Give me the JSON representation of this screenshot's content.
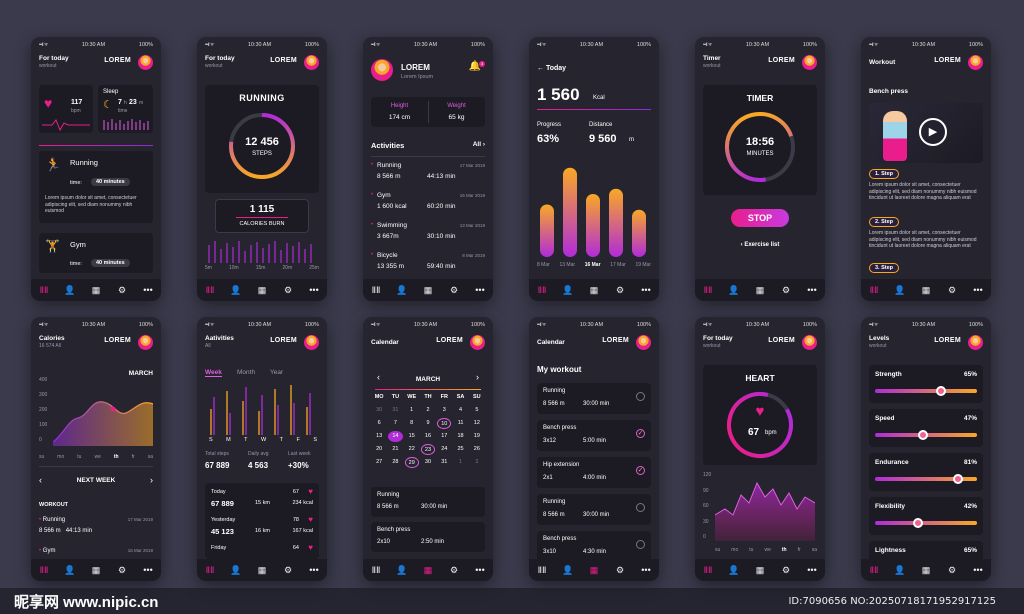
{
  "common": {
    "time": "10:30 AM",
    "battery": "100%",
    "user": "LOREM",
    "signal": "••ıl ᯤ",
    "tabs": [
      "dumbbell-icon",
      "person-icon",
      "calendar-icon",
      "gear-icon",
      "more-icon"
    ],
    "tab_glyphs": [
      "ⅡⅡ",
      "👤",
      "▦",
      "⚙",
      "•••"
    ]
  },
  "s1": {
    "title": "For today",
    "sub": "workout",
    "bpm_val": "117",
    "bpm_unit": "bpm",
    "sleep": "Sleep",
    "sleep_h": "7",
    "sleep_h_unit": "h",
    "sleep_m": "23",
    "sleep_m_unit": "m",
    "sleep_time": "time",
    "running": "Running",
    "running_time_label": "time:",
    "running_time": "40 minutes",
    "lorem": "Lorem ipsum dolor sit amet, consectetuer adipiscing elit, sed diam nonummy nibh euismod",
    "gym": "Gym",
    "gym_time_label": "time:",
    "gym_time": "40 minutes"
  },
  "s2": {
    "title": "For today",
    "sub": "workout",
    "heading": "RUNNING",
    "steps": "12 456",
    "steps_label": "STEPS",
    "cal": "1 115",
    "cal_label": "CALORIES BURN",
    "ticks": [
      "5m",
      "10m",
      "15m",
      "20m",
      "25m"
    ]
  },
  "s3": {
    "name": "LOREM",
    "sub": "Lorem Ipsum",
    "height_label": "Height",
    "height": "174 cm",
    "weight_label": "Weight",
    "weight": "65 kg",
    "activities": "Activities",
    "all": "All",
    "badge": "3",
    "items": [
      {
        "name": "Running",
        "date": "17 Mar 2019",
        "a": "8 566 m",
        "b": "44:13 min"
      },
      {
        "name": "Gym",
        "date": "16 Mar 2019",
        "a": "1 600 kcal",
        "b": "60:20 min"
      },
      {
        "name": "Swimming",
        "date": "13 Mar 2019",
        "a": "3 667m",
        "b": "30:10 min"
      },
      {
        "name": "Bicycle",
        "date": "8 Mar 2019",
        "a": "13 355 m",
        "b": "59:40 min"
      }
    ]
  },
  "s4": {
    "back": "Today",
    "kcal": "1 560",
    "kcal_unit": "Kcal",
    "progress_label": "Progress",
    "progress": "63%",
    "distance_label": "Distance",
    "distance": "9 560",
    "distance_unit": "m",
    "labels": [
      "8 Mar",
      "13 Mar",
      "16 Mar",
      "17 Mar",
      "19 Mar"
    ],
    "bars": [
      0.5,
      0.85,
      0.6,
      0.65,
      0.45
    ]
  },
  "s5": {
    "title": "Timer",
    "sub": "workout",
    "heading": "TIMER",
    "time": "18:56",
    "unit": "MINUTES",
    "stop": "STOP",
    "list": "Exercise list"
  },
  "s6": {
    "title": "Workout",
    "heading": "Bench press",
    "steps": [
      {
        "label": "1. Step",
        "text": "Lorem ipsum dolor sit amet, consectetuer adipiscing elit, sed diam nonummy nibh euismod tincidunt ut laoreet dolore magna aliquam erat"
      },
      {
        "label": "2. Step",
        "text": "Lorem ipsum dolor sit amet, consectetuer adipiscing elit, sed diam nonummy nibh euismod tincidunt ut laoreet dolore magna aliquam erat"
      },
      {
        "label": "3. Step",
        "text": ""
      }
    ]
  },
  "s7": {
    "title": "Calories",
    "sub": "16 574 All",
    "month": "MARCH",
    "yticks": [
      "400",
      "300",
      "200",
      "100",
      "0"
    ],
    "days": [
      "su",
      "mo",
      "tu",
      "we",
      "th",
      "fr",
      "sa"
    ],
    "week": "NEXT WEEK",
    "workout": "WORKOUT",
    "items": [
      {
        "name": "Running",
        "date": "17 Mar 2019",
        "a": "8 566 m",
        "b": "44:13 min"
      },
      {
        "name": "Gym",
        "date": "16 Mar 2019"
      }
    ]
  },
  "s8": {
    "title": "Aativities",
    "sub": "All",
    "tabs": [
      "Week",
      "Month",
      "Year"
    ],
    "days": [
      "S",
      "M",
      "T",
      "W",
      "T",
      "F",
      "S"
    ],
    "total_label": "Total steps",
    "total": "67 889",
    "avg_label": "Daily avg",
    "avg": "4 563",
    "last_label": "Last week",
    "last": "+30%",
    "rows": [
      {
        "day": "Today",
        "n": "67",
        "steps": "67 889",
        "km": "15 km",
        "kcal": "234 kcal"
      },
      {
        "day": "Yesterday",
        "n": "78",
        "steps": "45 123",
        "km": "16 km",
        "kcal": "167 kcal"
      },
      {
        "day": "Friday",
        "n": "64",
        "steps": "",
        "km": "",
        "kcal": ""
      }
    ]
  },
  "s9": {
    "title": "Calendar",
    "month": "MARCH",
    "wd": [
      "MO",
      "TU",
      "WE",
      "TH",
      "FR",
      "SA",
      "SU"
    ],
    "weeks": [
      [
        "30",
        "31",
        "1",
        "2",
        "3",
        "4",
        "5"
      ],
      [
        "6",
        "7",
        "8",
        "9",
        "10",
        "11",
        "12"
      ],
      [
        "13",
        "14",
        "15",
        "16",
        "17",
        "18",
        "19"
      ],
      [
        "20",
        "21",
        "22",
        "23",
        "24",
        "25",
        "26"
      ],
      [
        "27",
        "28",
        "29",
        "30",
        "31",
        "1",
        "2"
      ]
    ],
    "items": [
      {
        "name": "Running",
        "a": "8 566 m",
        "b": "30:00 min"
      },
      {
        "name": "Bench press",
        "a": "2x10",
        "b": "2:50 min"
      }
    ]
  },
  "s10": {
    "title": "Calendar",
    "heading": "My workout",
    "items": [
      {
        "name": "Running",
        "a": "8 566 m",
        "b": "30:00 min",
        "done": false
      },
      {
        "name": "Bench press",
        "a": "3x12",
        "b": "5:00 min",
        "done": true
      },
      {
        "name": "Hip extension",
        "a": "2x1",
        "b": "4:00 min",
        "done": true
      },
      {
        "name": "Running",
        "a": "8 566 m",
        "b": "30:00 min",
        "done": false
      },
      {
        "name": "Bench press",
        "a": "3x10",
        "b": "4:30 min",
        "done": false
      }
    ]
  },
  "s11": {
    "title": "For today",
    "sub": "workout",
    "heading": "HEART",
    "bpm": "67",
    "unit": "bpm",
    "yticks": [
      "120",
      "90",
      "60",
      "30",
      "0"
    ],
    "days": [
      "su",
      "mo",
      "tu",
      "we",
      "th",
      "fr",
      "sa"
    ]
  },
  "s12": {
    "title": "Levels",
    "sub": "workout",
    "levels": [
      {
        "name": "Strength",
        "pct": "65%",
        "v": 0.65
      },
      {
        "name": "Speed",
        "pct": "47%",
        "v": 0.47
      },
      {
        "name": "Endurance",
        "pct": "81%",
        "v": 0.81
      },
      {
        "name": "Flexibility",
        "pct": "42%",
        "v": 0.42
      },
      {
        "name": "Lightness",
        "pct": "65%",
        "v": 0.65
      }
    ]
  },
  "watermark": {
    "logo": "昵享网 www.nipic.cn",
    "id": "ID:7090656 NO:20250718171952917125"
  }
}
